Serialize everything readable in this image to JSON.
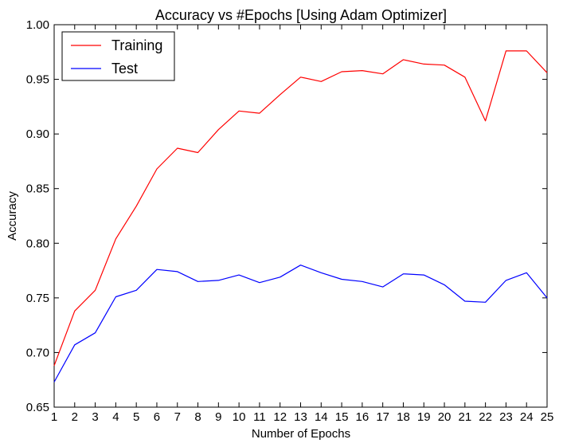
{
  "chart_data": {
    "type": "line",
    "title": "Accuracy vs #Epochs [Using Adam Optimizer]",
    "xlabel": "Number of Epochs",
    "ylabel": "Accuracy",
    "xlim": [
      1,
      25
    ],
    "ylim": [
      0.65,
      1.0
    ],
    "x": [
      1,
      2,
      3,
      4,
      5,
      6,
      7,
      8,
      9,
      10,
      11,
      12,
      13,
      14,
      15,
      16,
      17,
      18,
      19,
      20,
      21,
      22,
      23,
      24,
      25
    ],
    "x_tick_labels": [
      "1",
      "2",
      "3",
      "4",
      "5",
      "6",
      "7",
      "8",
      "9",
      "10",
      "11",
      "12",
      "13",
      "14",
      "15",
      "16",
      "17",
      "18",
      "19",
      "20",
      "21",
      "22",
      "23",
      "24",
      "25"
    ],
    "y_ticks": [
      0.65,
      0.7,
      0.75,
      0.8,
      0.85,
      0.9,
      0.95,
      1.0
    ],
    "y_tick_labels": [
      "0.65",
      "0.70",
      "0.75",
      "0.80",
      "0.85",
      "0.90",
      "0.95",
      "1.00"
    ],
    "grid": false,
    "legend_position": "top-left",
    "series": [
      {
        "name": "Training",
        "color": "#ff0000",
        "values": [
          0.688,
          0.738,
          0.757,
          0.804,
          0.834,
          0.868,
          0.887,
          0.883,
          0.904,
          0.921,
          0.919,
          0.936,
          0.952,
          0.948,
          0.957,
          0.958,
          0.955,
          0.968,
          0.964,
          0.963,
          0.952,
          0.912,
          0.976,
          0.976,
          0.956
        ]
      },
      {
        "name": "Test",
        "color": "#0000ff",
        "values": [
          0.673,
          0.707,
          0.718,
          0.751,
          0.757,
          0.776,
          0.774,
          0.765,
          0.766,
          0.771,
          0.764,
          0.769,
          0.78,
          0.773,
          0.767,
          0.765,
          0.76,
          0.772,
          0.771,
          0.762,
          0.747,
          0.746,
          0.766,
          0.773,
          0.75
        ]
      }
    ]
  }
}
